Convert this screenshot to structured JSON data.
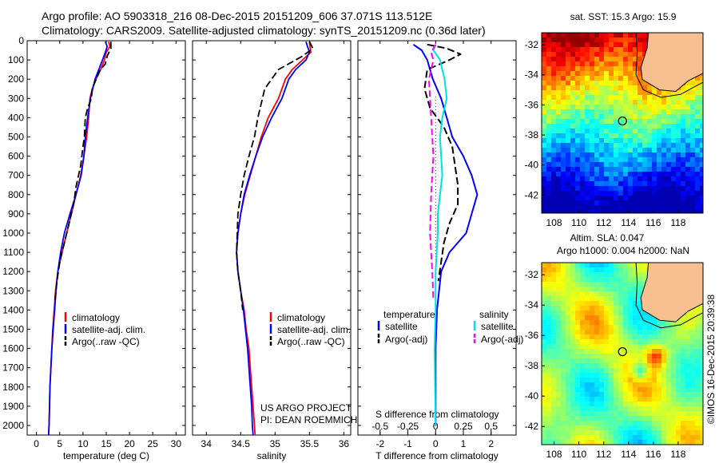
{
  "header": {
    "line1": "Argo profile: AO 5903318_216 08-Dec-2015 20151209_606 37.071S 113.512E",
    "line2": "Climatology: CARS2009. Satellite-adjusted climatology: synTS_20151209.nc (0.36d later)"
  },
  "colors": {
    "climatology": "#ff0000",
    "satellite": "#0000ff",
    "argo": "#000000",
    "cyan": "#00e0e8",
    "magenta": "#ff00ff",
    "land": "#f8c090",
    "marker": "#000000"
  },
  "depth_axis": {
    "range": [
      0,
      2050
    ],
    "ticks": [
      0,
      100,
      200,
      300,
      400,
      500,
      600,
      700,
      800,
      900,
      1000,
      1100,
      1200,
      1300,
      1400,
      1500,
      1600,
      1700,
      1800,
      1900,
      2000
    ]
  },
  "chart_data": [
    {
      "type": "line",
      "name": "temperature-profile",
      "xlabel": "temperature (deg C)",
      "xlim": [
        -2,
        32
      ],
      "xticks": [
        0,
        5,
        10,
        15,
        20,
        25,
        30
      ],
      "ylim": [
        2050,
        0
      ],
      "legend": {
        "placement": "lower-middle",
        "entries": [
          "climatology",
          "satellite-adj. clim.",
          "Argo(..raw -QC)"
        ]
      },
      "series": [
        {
          "name": "climatology",
          "color": "#ff0000",
          "dash": false,
          "points": [
            [
              15.5,
              5
            ],
            [
              15.8,
              30
            ],
            [
              15.0,
              60
            ],
            [
              14.6,
              100
            ],
            [
              13.8,
              150
            ],
            [
              12.8,
              200
            ],
            [
              12.0,
              250
            ],
            [
              11.5,
              300
            ],
            [
              11.2,
              400
            ],
            [
              10.8,
              500
            ],
            [
              10.2,
              600
            ],
            [
              9.5,
              700
            ],
            [
              8.5,
              800
            ],
            [
              7.5,
              900
            ],
            [
              6.5,
              1000
            ],
            [
              5.5,
              1100
            ],
            [
              4.6,
              1200
            ],
            [
              4.1,
              1300
            ],
            [
              3.8,
              1400
            ],
            [
              3.5,
              1500
            ],
            [
              3.3,
              1600
            ],
            [
              3.1,
              1700
            ],
            [
              2.9,
              1800
            ],
            [
              2.8,
              1900
            ],
            [
              2.7,
              2000
            ],
            [
              2.6,
              2050
            ]
          ]
        },
        {
          "name": "satellite-adj. clim.",
          "color": "#0000ff",
          "dash": false,
          "points": [
            [
              14.8,
              5
            ],
            [
              15.2,
              30
            ],
            [
              14.8,
              60
            ],
            [
              14.2,
              100
            ],
            [
              13.4,
              150
            ],
            [
              12.6,
              200
            ],
            [
              12.1,
              250
            ],
            [
              11.6,
              300
            ],
            [
              11.0,
              400
            ],
            [
              10.5,
              500
            ],
            [
              10.2,
              600
            ],
            [
              9.6,
              700
            ],
            [
              8.5,
              800
            ],
            [
              7.2,
              900
            ],
            [
              6.0,
              1000
            ],
            [
              5.2,
              1100
            ],
            [
              4.6,
              1200
            ],
            [
              4.2,
              1300
            ],
            [
              3.9,
              1400
            ],
            [
              3.6,
              1500
            ],
            [
              3.3,
              1600
            ],
            [
              3.1,
              1700
            ],
            [
              2.9,
              1800
            ],
            [
              2.8,
              1900
            ],
            [
              2.7,
              2000
            ],
            [
              2.6,
              2050
            ]
          ]
        },
        {
          "name": "Argo(..raw -QC)",
          "color": "#000000",
          "dash": true,
          "points": [
            [
              16.0,
              5
            ],
            [
              16.0,
              40
            ],
            [
              15.2,
              80
            ],
            [
              14.8,
              120
            ],
            [
              13.5,
              160
            ],
            [
              12.0,
              250
            ],
            [
              11.8,
              300
            ],
            [
              11.0,
              350
            ],
            [
              10.5,
              400
            ],
            [
              10.3,
              500
            ],
            [
              10.0,
              550
            ],
            [
              9.5,
              650
            ],
            [
              8.5,
              760
            ],
            [
              8.0,
              850
            ],
            [
              7.0,
              950
            ],
            [
              6.0,
              1050
            ],
            [
              5.0,
              1150
            ],
            [
              4.4,
              1250
            ],
            [
              4.0,
              1350
            ]
          ]
        }
      ]
    },
    {
      "type": "line",
      "name": "salinity-profile",
      "xlabel": "salinity",
      "xlim": [
        33.8,
        36.1
      ],
      "xticks": [
        34,
        34.5,
        35,
        35.5,
        36
      ],
      "ylim": [
        2050,
        0
      ],
      "legend": {
        "placement": "lower-right",
        "entries": [
          "climatology",
          "satellite-adj. clim.",
          "Argo(..raw -QC)"
        ]
      },
      "annotation": [
        "US ARGO PROJECT",
        "PI: DEAN ROEMMICH"
      ],
      "series": [
        {
          "name": "climatology",
          "color": "#ff0000",
          "dash": false,
          "points": [
            [
              35.5,
              5
            ],
            [
              35.52,
              60
            ],
            [
              35.4,
              100
            ],
            [
              35.25,
              150
            ],
            [
              35.15,
              200
            ],
            [
              35.05,
              300
            ],
            [
              34.9,
              400
            ],
            [
              34.8,
              500
            ],
            [
              34.72,
              600
            ],
            [
              34.64,
              700
            ],
            [
              34.56,
              800
            ],
            [
              34.5,
              900
            ],
            [
              34.46,
              1000
            ],
            [
              34.44,
              1100
            ],
            [
              34.46,
              1200
            ],
            [
              34.5,
              1300
            ],
            [
              34.55,
              1400
            ],
            [
              34.58,
              1500
            ],
            [
              34.62,
              1600
            ],
            [
              34.64,
              1700
            ],
            [
              34.66,
              1800
            ],
            [
              34.68,
              1900
            ],
            [
              34.7,
              2000
            ],
            [
              34.71,
              2050
            ]
          ]
        },
        {
          "name": "satellite-adj. clim.",
          "color": "#0000ff",
          "dash": false,
          "points": [
            [
              35.45,
              5
            ],
            [
              35.5,
              60
            ],
            [
              35.45,
              100
            ],
            [
              35.3,
              150
            ],
            [
              35.2,
              200
            ],
            [
              35.1,
              300
            ],
            [
              34.95,
              400
            ],
            [
              34.82,
              500
            ],
            [
              34.72,
              600
            ],
            [
              34.63,
              700
            ],
            [
              34.55,
              800
            ],
            [
              34.5,
              900
            ],
            [
              34.46,
              1000
            ],
            [
              34.44,
              1100
            ],
            [
              34.46,
              1200
            ],
            [
              34.5,
              1300
            ],
            [
              34.54,
              1400
            ],
            [
              34.57,
              1500
            ],
            [
              34.6,
              1600
            ],
            [
              34.62,
              1700
            ],
            [
              34.64,
              1800
            ],
            [
              34.66,
              1900
            ],
            [
              34.67,
              2000
            ],
            [
              34.68,
              2050
            ]
          ]
        },
        {
          "name": "Argo(..raw -QC)",
          "color": "#000000",
          "dash": true,
          "points": [
            [
              35.5,
              5
            ],
            [
              35.55,
              40
            ],
            [
              35.4,
              80
            ],
            [
              35.3,
              100
            ],
            [
              35.05,
              150
            ],
            [
              34.85,
              250
            ],
            [
              34.75,
              400
            ],
            [
              34.7,
              500
            ],
            [
              34.62,
              600
            ],
            [
              34.55,
              700
            ],
            [
              34.5,
              800
            ],
            [
              34.46,
              900
            ],
            [
              34.45,
              1000
            ],
            [
              34.44,
              1100
            ],
            [
              34.46,
              1200
            ],
            [
              34.5,
              1300
            ],
            [
              34.53,
              1400
            ]
          ]
        }
      ]
    },
    {
      "type": "line",
      "name": "difference-profile",
      "xlabel": "T difference from climatology",
      "xlim": [
        -2.8,
        2.9
      ],
      "xticks": [
        -2,
        -1,
        0,
        1,
        2
      ],
      "x2label": "S difference from climatology",
      "x2lim": [
        -0.7,
        0.725
      ],
      "x2ticks": [
        -0.5,
        -0.25,
        0,
        0.25,
        0.5
      ],
      "x2ticklabels": [
        "-0.5",
        "-0.25",
        "0",
        "0.25",
        "0.5"
      ],
      "ylim": [
        2050,
        0
      ],
      "legend": {
        "placement": "lower",
        "temperature_title": "temperature",
        "salinity_title": "salinity",
        "entries": [
          "satellite",
          "Argo(-adj)",
          "satellite",
          "Argo(-adj)"
        ]
      },
      "series": [
        {
          "name": "temperature satellite",
          "color": "#0000ff",
          "dash": false,
          "axis": "T",
          "points": [
            [
              -0.8,
              20
            ],
            [
              -0.5,
              50
            ],
            [
              -0.3,
              100
            ],
            [
              -0.1,
              200
            ],
            [
              0.2,
              300
            ],
            [
              0.4,
              400
            ],
            [
              0.6,
              500
            ],
            [
              1.0,
              600
            ],
            [
              1.3,
              700
            ],
            [
              1.5,
              800
            ],
            [
              1.3,
              900
            ],
            [
              1.1,
              1000
            ],
            [
              0.5,
              1100
            ],
            [
              0.2,
              1200
            ],
            [
              0.05,
              1400
            ],
            [
              0.0,
              1600
            ],
            [
              0.0,
              2000
            ]
          ]
        },
        {
          "name": "temperature Argo(-adj)",
          "color": "#000000",
          "dash": true,
          "axis": "T",
          "points": [
            [
              -0.3,
              20
            ],
            [
              0.4,
              40
            ],
            [
              0.9,
              70
            ],
            [
              0.5,
              100
            ],
            [
              -0.3,
              150
            ],
            [
              -0.4,
              250
            ],
            [
              -0.2,
              350
            ],
            [
              0.3,
              450
            ],
            [
              0.6,
              550
            ],
            [
              0.7,
              650
            ],
            [
              0.8,
              750
            ],
            [
              0.8,
              850
            ],
            [
              0.5,
              950
            ],
            [
              0.3,
              1050
            ],
            [
              0.2,
              1150
            ],
            [
              0.1,
              1250
            ]
          ]
        },
        {
          "name": "salinity satellite",
          "color": "#00e0e8",
          "dash": false,
          "axis": "S",
          "points": [
            [
              0.0,
              20
            ],
            [
              -0.02,
              50
            ],
            [
              0.04,
              100
            ],
            [
              0.08,
              200
            ],
            [
              0.1,
              300
            ],
            [
              0.06,
              400
            ],
            [
              0.04,
              500
            ],
            [
              0.05,
              600
            ],
            [
              0.06,
              700
            ],
            [
              0.04,
              800
            ],
            [
              0.02,
              900
            ],
            [
              0.02,
              1000
            ],
            [
              0.0,
              1200
            ],
            [
              0.0,
              1400
            ],
            [
              -0.01,
              1600
            ],
            [
              0.0,
              2000
            ]
          ]
        },
        {
          "name": "salinity Argo(-adj)",
          "color": "#ff00ff",
          "dash": true,
          "axis": "S",
          "points": [
            [
              0.0,
              20
            ],
            [
              -0.04,
              60
            ],
            [
              -0.02,
              100
            ],
            [
              -0.06,
              200
            ],
            [
              -0.04,
              400
            ],
            [
              -0.02,
              600
            ],
            [
              -0.04,
              800
            ],
            [
              -0.05,
              1000
            ],
            [
              -0.03,
              1200
            ],
            [
              -0.02,
              1350
            ]
          ]
        }
      ]
    },
    {
      "type": "heatmap",
      "name": "sst-map",
      "title": "sat. SST: 15.3  Argo: 15.9",
      "xlim": [
        107,
        120
      ],
      "ylim": [
        -43.2,
        -31.2
      ],
      "xticks": [
        108,
        110,
        112,
        114,
        116,
        118
      ],
      "yticks": [
        -32,
        -34,
        -36,
        -38,
        -40,
        -42
      ],
      "marker": [
        113.512,
        -37.071
      ]
    },
    {
      "type": "heatmap",
      "name": "sla-map",
      "title": "Altim. SLA: 0.047",
      "subtitle": "Argo h1000: 0.004  h2000: NaN",
      "xlim": [
        107,
        120
      ],
      "ylim": [
        -43.2,
        -31.2
      ],
      "xticks": [
        108,
        110,
        112,
        114,
        116,
        118
      ],
      "yticks": [
        -32,
        -34,
        -36,
        -38,
        -40,
        -42
      ],
      "marker": [
        113.512,
        -37.071
      ],
      "side_label": "©IMOS 16-Dec-2015 20:39:38"
    }
  ]
}
